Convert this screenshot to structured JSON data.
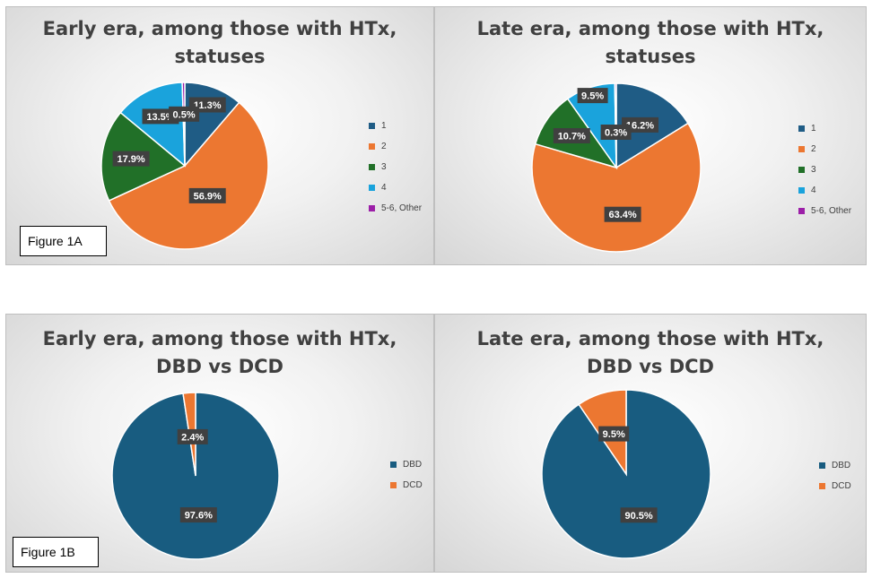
{
  "chart_data": [
    {
      "type": "pie",
      "title_lines": [
        "Early era, among those with HTx,",
        "statuses"
      ],
      "categories": [
        "1",
        "2",
        "3",
        "4",
        "5-6, Other"
      ],
      "values": [
        11.3,
        56.9,
        17.9,
        13.5,
        0.5
      ],
      "labels": [
        "11.3%",
        "56.9%",
        "17.9%",
        "13.5%",
        "0.5%"
      ],
      "colors": [
        "#1f5c85",
        "#ec7731",
        "#217028",
        "#1aa3dc",
        "#9c1fa8"
      ],
      "legend_position": "right"
    },
    {
      "type": "pie",
      "title_lines": [
        "Late era, among those with HTx,",
        "statuses"
      ],
      "categories": [
        "1",
        "2",
        "3",
        "4",
        "5-6, Other"
      ],
      "values": [
        16.2,
        63.4,
        10.7,
        9.5,
        0.3
      ],
      "labels": [
        "16.2%",
        "63.4%",
        "10.7%",
        "9.5%",
        "0.3%"
      ],
      "colors": [
        "#1f5c85",
        "#ec7731",
        "#217028",
        "#1aa3dc",
        "#9c1fa8"
      ],
      "legend_position": "right"
    },
    {
      "type": "pie",
      "title_lines": [
        "Early era, among those with HTx,",
        "DBD vs DCD"
      ],
      "categories": [
        "DBD",
        "DCD"
      ],
      "values": [
        97.6,
        2.4
      ],
      "labels": [
        "97.6%",
        "2.4%"
      ],
      "colors": [
        "#185c80",
        "#ec7731"
      ],
      "legend_position": "right"
    },
    {
      "type": "pie",
      "title_lines": [
        "Late era, among those with HTx,",
        "DBD vs DCD"
      ],
      "categories": [
        "DBD",
        "DCD"
      ],
      "values": [
        90.5,
        9.5
      ],
      "labels": [
        "90.5%",
        "9.5%"
      ],
      "colors": [
        "#185c80",
        "#ec7731"
      ],
      "legend_position": "right"
    }
  ],
  "figure_labels": {
    "fig_1a": "Figure 1A",
    "fig_1b": "Figure 1B"
  }
}
